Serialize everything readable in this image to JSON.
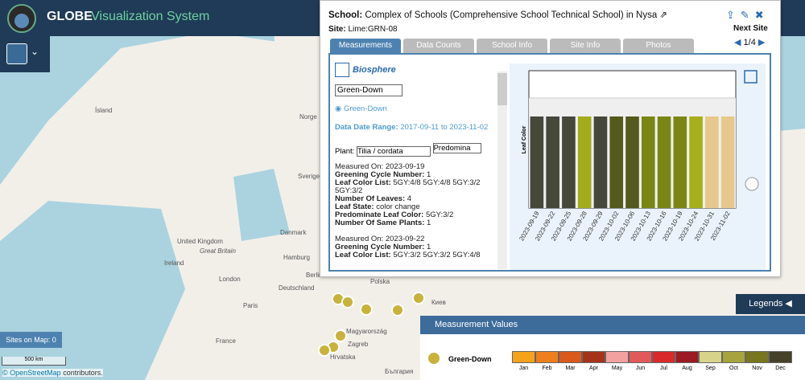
{
  "header": {
    "title": "GLOBE",
    "subtitle": "Visualization System"
  },
  "map": {
    "labels": [
      "Ísland",
      "Norge",
      "Sverige",
      "United Kingdom",
      "Great Britain",
      "Ireland",
      "London",
      "Paris",
      "France",
      "Danmark",
      "Deutschland",
      "Hamburg",
      "Berlin",
      "Polska",
      "Magyarország",
      "Zagreb",
      "Hrvatska",
      "България",
      "Киев"
    ],
    "sites_on_map": "Sites on Map: 0",
    "scale": "500 km",
    "attribution_link": "© OpenStreetMap",
    "attribution": "contributors."
  },
  "popup": {
    "school_label": "School:",
    "school": "Complex of Schools (Comprehensive School Technical School) in Nysa",
    "site_label": "Site:",
    "site": "Lime:GRN-08",
    "next_site": "Next Site",
    "pager": "1/4",
    "tabs": [
      "Measurements",
      "Data Counts",
      "School Info",
      "Site Info",
      "Photos"
    ],
    "protocol": "Biosphere",
    "select": "Green-Down",
    "radio": "Green-Down",
    "date_range_label": "Data Date Range:",
    "date_range": "2017-09-11 to 2023-11-02",
    "plant_label": "Plant:",
    "plant": "Tilia / cordata",
    "predominant": "Predomina",
    "measurements": [
      [
        [
          "Measured On:",
          "2023-09-19"
        ],
        [
          "Greening Cycle Number:",
          "1"
        ],
        [
          "Leaf Color List:",
          "5GY:4/8 5GY:4/8 5GY:3/2 5GY:3/2"
        ],
        [
          "Number Of Leaves:",
          "4"
        ],
        [
          "Leaf State:",
          "color change"
        ],
        [
          "Predominate Leaf Color:",
          "5GY:3/2"
        ],
        [
          "Number Of Same Plants:",
          "1"
        ]
      ],
      [
        [
          "Measured On:",
          "2023-09-22"
        ],
        [
          "Greening Cycle Number:",
          "1"
        ],
        [
          "Leaf Color List:",
          "5GY:3/2 5GY:3/2 5GY:4/8"
        ]
      ]
    ]
  },
  "chart_data": {
    "type": "bar",
    "y_label": "Leaf Color",
    "categories": [
      "2023-09-19",
      "2023-09-22",
      "2023-09-25",
      "2023-09-28",
      "2023-09-29",
      "2023-10-02",
      "2023-10-06",
      "2023-10-13",
      "2023-10-16",
      "2023-10-19",
      "2023-10-24",
      "2023-10-31",
      "2023-11-02"
    ],
    "values": [
      1,
      1,
      1,
      1,
      1,
      1,
      1,
      1,
      1,
      1,
      1,
      1,
      1
    ],
    "colors": [
      "#46483a",
      "#46483a",
      "#46483a",
      "#a3ad1c",
      "#46483a",
      "#535a1c",
      "#535a1c",
      "#7a8613",
      "#7a8613",
      "#7a8613",
      "#a6b01a",
      "#e6c98a",
      "#e6c98a"
    ],
    "ylim": [
      0,
      1.5
    ]
  },
  "legend": {
    "tab": "Legends",
    "title": "Measurement Values",
    "protocol": "Green-Down",
    "months": [
      "Jan",
      "Feb",
      "Mar",
      "Apr",
      "May",
      "Jun",
      "Jul",
      "Aug",
      "Sep",
      "Oct",
      "Nov",
      "Dec"
    ],
    "colors": [
      "#f7a21b",
      "#ef7e1d",
      "#d95a1a",
      "#a5331a",
      "#f3a0a0",
      "#e05a5a",
      "#d82a2a",
      "#9c1a24",
      "#d8d38a",
      "#a6a43c",
      "#78761e",
      "#46422a"
    ]
  }
}
